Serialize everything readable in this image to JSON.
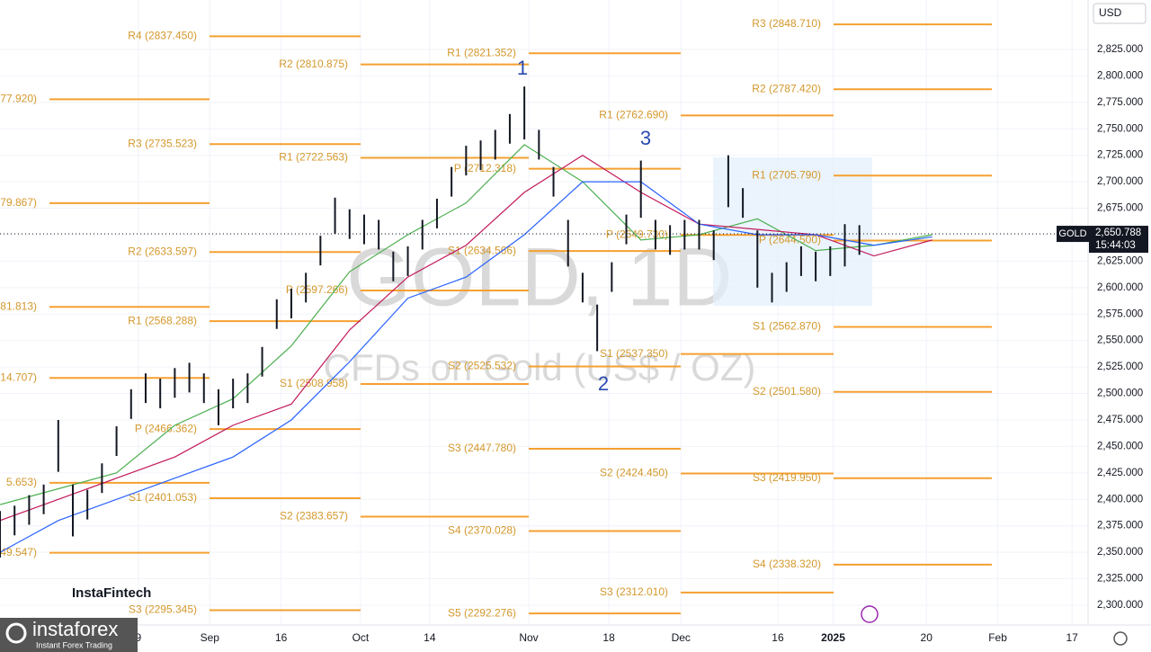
{
  "chart_data": {
    "type": "ohlc",
    "title": "GOLD, 1D",
    "subtitle": "CFDs on Gold (US$ / OZ)",
    "currency": "USD",
    "symbol": "GOLD",
    "last_price": {
      "value": 2650.788,
      "label": "2,650.788"
    },
    "countdown": "15:44:03",
    "bar_color": "#131722",
    "x": [
      0,
      2,
      4,
      6,
      8,
      10,
      12,
      14,
      16,
      18,
      20,
      22,
      24,
      26,
      28,
      30,
      32,
      34,
      36,
      38,
      40,
      42,
      44,
      46,
      48,
      50,
      52,
      54,
      56,
      58,
      60,
      62,
      64,
      66,
      68,
      70,
      72,
      74,
      76,
      78,
      80,
      82,
      84,
      86,
      88,
      90,
      92,
      94,
      96,
      98,
      100,
      102,
      104,
      106,
      108,
      110,
      112,
      114,
      116,
      118
    ],
    "high": [
      2389,
      2394,
      2404,
      2414,
      2475,
      2414,
      2409,
      2434,
      2469,
      2504,
      2519,
      2514,
      2524,
      2529,
      2519,
      2504,
      2514,
      2519,
      2544,
      2589,
      2599,
      2614,
      2649,
      2685,
      2674,
      2669,
      2664,
      2634,
      2639,
      2664,
      2684,
      2714,
      2734,
      2739,
      2749,
      2764,
      2790,
      2749,
      2714,
      2664,
      2614,
      2584,
      2624,
      2669,
      2720,
      2664,
      2659,
      2664,
      2664,
      2654,
      2725,
      2694,
      2654,
      2614,
      2624,
      2639,
      2634,
      2639,
      2660,
      2659
    ],
    "low": [
      2345,
      2366,
      2376,
      2386,
      2426,
      2365,
      2381,
      2406,
      2441,
      2476,
      2491,
      2486,
      2496,
      2501,
      2491,
      2470,
      2486,
      2491,
      2516,
      2561,
      2571,
      2586,
      2621,
      2651,
      2646,
      2641,
      2636,
      2606,
      2611,
      2636,
      2656,
      2686,
      2706,
      2711,
      2721,
      2736,
      2740,
      2721,
      2686,
      2620,
      2586,
      2540,
      2596,
      2641,
      2666,
      2636,
      2631,
      2636,
      2636,
      2626,
      2676,
      2666,
      2600,
      2586,
      2596,
      2611,
      2606,
      2611,
      2620,
      2631
    ],
    "ma": [
      {
        "color": "#4caf50",
        "x": [
          0,
          8,
          16,
          24,
          32,
          40,
          48,
          56,
          64,
          72,
          80,
          88,
          96,
          104,
          112,
          120,
          128
        ],
        "values": [
          2395,
          2410,
          2425,
          2470,
          2495,
          2545,
          2615,
          2650,
          2680,
          2735,
          2700,
          2645,
          2650,
          2665,
          2635,
          2640,
          2650
        ]
      },
      {
        "color": "#c2185b",
        "x": [
          0,
          8,
          16,
          24,
          32,
          40,
          48,
          56,
          64,
          72,
          80,
          88,
          96,
          104,
          112,
          120,
          128
        ],
        "values": [
          2380,
          2400,
          2420,
          2440,
          2470,
          2490,
          2560,
          2610,
          2640,
          2690,
          2725,
          2690,
          2660,
          2655,
          2650,
          2630,
          2645
        ]
      },
      {
        "color": "#2962ff",
        "x": [
          0,
          8,
          16,
          24,
          32,
          40,
          48,
          56,
          64,
          72,
          80,
          88,
          96,
          104,
          112,
          120,
          128
        ],
        "values": [
          2350,
          2380,
          2400,
          2420,
          2440,
          2475,
          2530,
          2590,
          2610,
          2650,
          2700,
          2700,
          2660,
          2650,
          2650,
          2640,
          2648
        ]
      }
    ],
    "pivot_color": "#f5a030",
    "pivot_periods": [
      {
        "levels": [
          {
            "label": "77.920)",
            "value": 2777.92
          },
          {
            "label": "79.867)",
            "value": 2679.867
          },
          {
            "label": "81.813)",
            "value": 2581.813
          },
          {
            "label": "14.707)",
            "value": 2514.707
          },
          {
            "label": "5.653)",
            "value": 2415.653
          },
          {
            "label": "49.547)",
            "value": 2349.547
          }
        ]
      },
      {
        "levels": [
          {
            "label": "R4 (2837.450)",
            "value": 2837.45
          },
          {
            "label": "R3 (2735.523)",
            "value": 2735.523
          },
          {
            "label": "R2 (2633.597)",
            "value": 2633.597
          },
          {
            "label": "R1 (2568.288)",
            "value": 2568.288
          },
          {
            "label": "P (2466.362)",
            "value": 2466.362
          },
          {
            "label": "S1 (2401.053)",
            "value": 2401.053
          },
          {
            "label": "S3 (2295.345)",
            "value": 2295.345
          }
        ]
      },
      {
        "levels": [
          {
            "label": "R2 (2810.875)",
            "value": 2810.875
          },
          {
            "label": "R1 (2722.563)",
            "value": 2722.563
          },
          {
            "label": "P (2597.266)",
            "value": 2597.266
          },
          {
            "label": "S1 (2508.958)",
            "value": 2508.958
          },
          {
            "label": "S2 (2383.657)",
            "value": 2383.657
          }
        ]
      },
      {
        "levels": [
          {
            "label": "R1 (2821.352)",
            "value": 2821.352
          },
          {
            "label": "P (2712.318)",
            "value": 2712.318
          },
          {
            "label": "S1 (2634.566)",
            "value": 2634.566
          },
          {
            "label": "S2 (2525.532)",
            "value": 2525.532
          },
          {
            "label": "S3 (2447.780)",
            "value": 2447.78
          },
          {
            "label": "S4 (2370.028)",
            "value": 2370.028
          },
          {
            "label": "S5 (2292.276)",
            "value": 2292.276
          }
        ]
      },
      {
        "levels": [
          {
            "label": "R1 (2762.690)",
            "value": 2762.69
          },
          {
            "label": "P (2649.730)",
            "value": 2649.73
          },
          {
            "label": "S1 (2537.350)",
            "value": 2537.35
          },
          {
            "label": "S2 (2424.450)",
            "value": 2424.45
          },
          {
            "label": "S3 (2312.010)",
            "value": 2312.01
          }
        ]
      },
      {
        "levels": [
          {
            "label": "R3 (2848.710)",
            "value": 2848.71
          },
          {
            "label": "R2 (2787.420)",
            "value": 2787.42
          },
          {
            "label": "R1 (2705.790)",
            "value": 2705.79
          },
          {
            "label": "P (2644.500)",
            "value": 2644.5
          },
          {
            "label": "S1 (2562.870)",
            "value": 2562.87
          },
          {
            "label": "S2 (2501.580)",
            "value": 2501.58
          },
          {
            "label": "S3 (2419.950)",
            "value": 2419.95
          },
          {
            "label": "S4 (2338.320)",
            "value": 2338.32
          }
        ]
      }
    ],
    "waves": [
      "1",
      "2",
      "3"
    ],
    "xlim": [
      0,
      149.4
    ],
    "xticks": [
      {
        "value": 19,
        "label": "9"
      },
      {
        "value": 28.8,
        "label": "Sep"
      },
      {
        "value": 38.6,
        "label": "16"
      },
      {
        "value": 49.5,
        "label": "Oct"
      },
      {
        "value": 59,
        "label": "14"
      },
      {
        "value": 72.6,
        "label": "Nov"
      },
      {
        "value": 83.6,
        "label": "18"
      },
      {
        "value": 93.5,
        "label": "Dec"
      },
      {
        "value": 106.8,
        "label": "16"
      },
      {
        "value": 114.4,
        "label": "2025"
      },
      {
        "value": 127.2,
        "label": "20"
      },
      {
        "value": 137,
        "label": "Feb"
      },
      {
        "value": 147.2,
        "label": "17"
      }
    ],
    "ylim": [
      2281.3,
      2871.7
    ],
    "yticks": [
      {
        "value": 2300,
        "label": "2,300.000"
      },
      {
        "value": 2325,
        "label": "2,325.000"
      },
      {
        "value": 2350,
        "label": "2,350.000"
      },
      {
        "value": 2375,
        "label": "2,375.000"
      },
      {
        "value": 2400,
        "label": "2,400.000"
      },
      {
        "value": 2425,
        "label": "2,425.000"
      },
      {
        "value": 2450,
        "label": "2,450.000"
      },
      {
        "value": 2475,
        "label": "2,475.000"
      },
      {
        "value": 2500,
        "label": "2,500.000"
      },
      {
        "value": 2525,
        "label": "2,525.000"
      },
      {
        "value": 2550,
        "label": "2,550.000"
      },
      {
        "value": 2575,
        "label": "2,575.000"
      },
      {
        "value": 2600,
        "label": "2,600.000"
      },
      {
        "value": 2625,
        "label": "2,625.000"
      },
      {
        "value": 2650,
        "label": "2,650.000"
      },
      {
        "value": 2675,
        "label": "2,675.000"
      },
      {
        "value": 2700,
        "label": "2,700.000"
      },
      {
        "value": 2725,
        "label": "2,725.000"
      },
      {
        "value": 2750,
        "label": "2,750.000"
      },
      {
        "value": 2775,
        "label": "2,775.000"
      },
      {
        "value": 2800,
        "label": "2,800.000"
      },
      {
        "value": 2825,
        "label": "2,825.000"
      }
    ],
    "grid": true
  },
  "branding": {
    "fintech": "InstaFintech",
    "forex": "instaforex",
    "tagline": "Instant Forex Trading"
  }
}
